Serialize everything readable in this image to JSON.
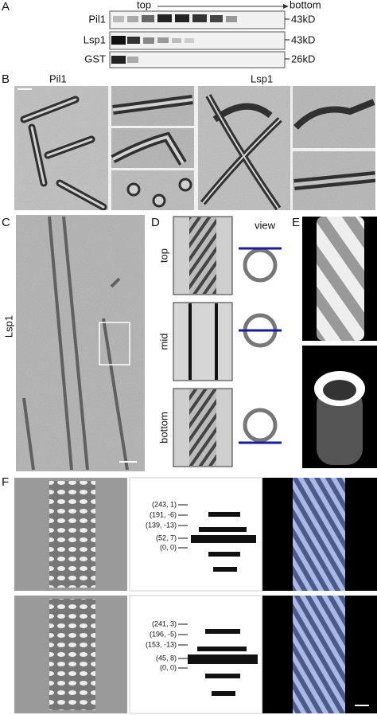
{
  "panels": {
    "a": {
      "letter": "A",
      "top": "top",
      "bottom": "bottom",
      "rows": [
        {
          "label": "Pil1",
          "size": "43kD"
        },
        {
          "label": "Lsp1",
          "size": "43kD"
        },
        {
          "label": "GST",
          "size": "26kD"
        }
      ]
    },
    "b": {
      "letter": "B",
      "labels": [
        "Pil1",
        "Lsp1"
      ]
    },
    "c": {
      "letter": "C",
      "label": "Lsp1"
    },
    "d": {
      "letter": "D",
      "header": "view",
      "rows": [
        "top",
        "mid",
        "bottom"
      ]
    },
    "e": {
      "letter": "E"
    },
    "f": {
      "letter": "F",
      "rows": [
        [
          "(243, 1)",
          "(191, -6)",
          "(139, -13)",
          "(52, 7)",
          "(0, 0)"
        ],
        [
          "(241, 3)",
          "(196, -5)",
          "(153, -13)",
          "(45, 8)",
          "(0, 0)"
        ]
      ]
    }
  }
}
